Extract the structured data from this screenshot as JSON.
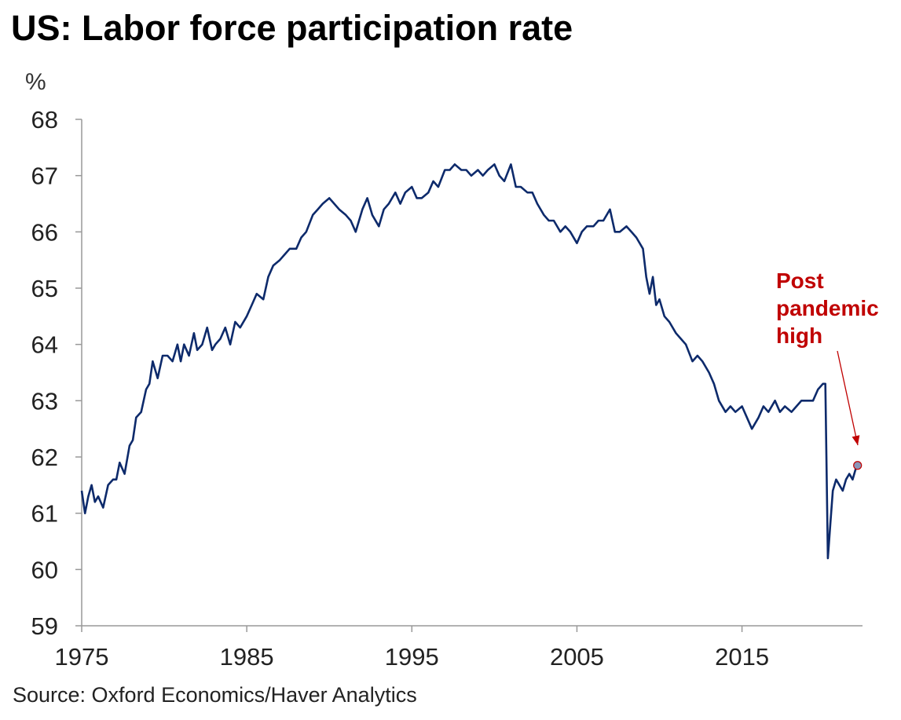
{
  "chart_data": {
    "type": "line",
    "title": "US: Labor force participation rate",
    "ylabel": "%",
    "xlabel": "",
    "source": "Source: Oxford Economics/Haver Analytics",
    "xlim": [
      1975,
      2022.3
    ],
    "ylim": [
      59,
      68
    ],
    "x_ticks": [
      1975,
      1985,
      1995,
      2005,
      2015
    ],
    "y_ticks": [
      59,
      60,
      61,
      62,
      63,
      64,
      65,
      66,
      67,
      68
    ],
    "grid": false,
    "line_color": "#0d2a6b",
    "annotation": {
      "lines": [
        "Post",
        "pandemic",
        "high"
      ],
      "color": "#c00000",
      "point": [
        2022.0,
        61.85
      ]
    },
    "series": [
      {
        "x": [
          1975.0,
          1975.2,
          1975.4,
          1975.6,
          1975.8,
          1976.0,
          1976.3,
          1976.6,
          1976.9,
          1977.1,
          1977.3,
          1977.6,
          1977.9,
          1978.1,
          1978.3,
          1978.6,
          1978.9,
          1979.1,
          1979.3,
          1979.6,
          1979.9,
          1980.2,
          1980.5,
          1980.8,
          1981.0,
          1981.2,
          1981.5,
          1981.8,
          1982.0,
          1982.3,
          1982.6,
          1982.9,
          1983.1,
          1983.4,
          1983.7,
          1984.0,
          1984.3,
          1984.6,
          1985.0,
          1985.3,
          1985.6,
          1986.0,
          1986.3,
          1986.6,
          1987.0,
          1987.3,
          1987.6,
          1988.0,
          1988.3,
          1988.6,
          1989.0,
          1989.3,
          1989.6,
          1990.0,
          1990.3,
          1990.6,
          1991.0,
          1991.3,
          1991.6,
          1992.0,
          1992.3,
          1992.6,
          1993.0,
          1993.3,
          1993.6,
          1994.0,
          1994.3,
          1994.6,
          1995.0,
          1995.3,
          1995.6,
          1996.0,
          1996.3,
          1996.6,
          1997.0,
          1997.3,
          1997.6,
          1998.0,
          1998.3,
          1998.6,
          1999.0,
          1999.3,
          1999.6,
          2000.0,
          2000.3,
          2000.6,
          2001.0,
          2001.3,
          2001.6,
          2002.0,
          2002.3,
          2002.6,
          2003.0,
          2003.3,
          2003.6,
          2004.0,
          2004.3,
          2004.6,
          2005.0,
          2005.3,
          2005.6,
          2006.0,
          2006.3,
          2006.6,
          2007.0,
          2007.3,
          2007.6,
          2008.0,
          2008.3,
          2008.6,
          2009.0,
          2009.2,
          2009.4,
          2009.6,
          2009.8,
          2010.0,
          2010.3,
          2010.6,
          2011.0,
          2011.3,
          2011.6,
          2012.0,
          2012.3,
          2012.6,
          2013.0,
          2013.3,
          2013.6,
          2014.0,
          2014.3,
          2014.6,
          2015.0,
          2015.3,
          2015.6,
          2016.0,
          2016.3,
          2016.6,
          2017.0,
          2017.3,
          2017.6,
          2018.0,
          2018.3,
          2018.6,
          2019.0,
          2019.3,
          2019.6,
          2019.9,
          2020.05,
          2020.2,
          2020.35,
          2020.5,
          2020.7,
          2020.9,
          2021.1,
          2021.3,
          2021.5,
          2021.7,
          2021.9,
          2022.0
        ],
        "y": [
          61.4,
          61.0,
          61.3,
          61.5,
          61.2,
          61.3,
          61.1,
          61.5,
          61.6,
          61.6,
          61.9,
          61.7,
          62.2,
          62.3,
          62.7,
          62.8,
          63.2,
          63.3,
          63.7,
          63.4,
          63.8,
          63.8,
          63.7,
          64.0,
          63.7,
          64.0,
          63.8,
          64.2,
          63.9,
          64.0,
          64.3,
          63.9,
          64.0,
          64.1,
          64.3,
          64.0,
          64.4,
          64.3,
          64.5,
          64.7,
          64.9,
          64.8,
          65.2,
          65.4,
          65.5,
          65.6,
          65.7,
          65.7,
          65.9,
          66.0,
          66.3,
          66.4,
          66.5,
          66.6,
          66.5,
          66.4,
          66.3,
          66.2,
          66.0,
          66.4,
          66.6,
          66.3,
          66.1,
          66.4,
          66.5,
          66.7,
          66.5,
          66.7,
          66.8,
          66.6,
          66.6,
          66.7,
          66.9,
          66.8,
          67.1,
          67.1,
          67.2,
          67.1,
          67.1,
          67.0,
          67.1,
          67.0,
          67.1,
          67.2,
          67.0,
          66.9,
          67.2,
          66.8,
          66.8,
          66.7,
          66.7,
          66.5,
          66.3,
          66.2,
          66.2,
          66.0,
          66.1,
          66.0,
          65.8,
          66.0,
          66.1,
          66.1,
          66.2,
          66.2,
          66.4,
          66.0,
          66.0,
          66.1,
          66.0,
          65.9,
          65.7,
          65.2,
          64.9,
          65.2,
          64.7,
          64.8,
          64.5,
          64.4,
          64.2,
          64.1,
          64.0,
          63.7,
          63.8,
          63.7,
          63.5,
          63.3,
          63.0,
          62.8,
          62.9,
          62.8,
          62.9,
          62.7,
          62.5,
          62.7,
          62.9,
          62.8,
          63.0,
          62.8,
          62.9,
          62.8,
          62.9,
          63.0,
          63.0,
          63.0,
          63.2,
          63.3,
          63.3,
          60.2,
          60.8,
          61.4,
          61.6,
          61.5,
          61.4,
          61.6,
          61.7,
          61.6,
          61.8,
          61.85
        ]
      }
    ]
  }
}
